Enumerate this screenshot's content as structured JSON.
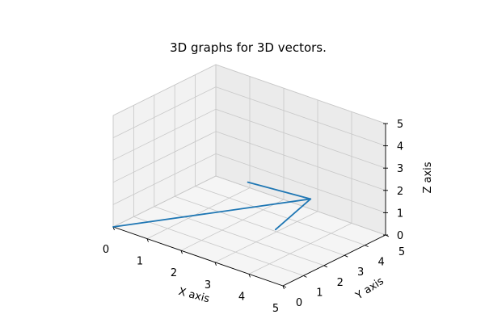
{
  "chart_data": {
    "type": "3d-vector",
    "title": "3D graphs for 3D vectors.",
    "xlabel": "X axis",
    "ylabel": "Y axis",
    "zlabel": "Z axis",
    "xlim": [
      0,
      5
    ],
    "ylim": [
      0,
      5
    ],
    "zlim": [
      0,
      5
    ],
    "xticks": [
      "0",
      "1",
      "2",
      "3",
      "4",
      "5"
    ],
    "yticks": [
      "0",
      "1",
      "2",
      "3",
      "4",
      "5"
    ],
    "zticks": [
      "0",
      "1",
      "2",
      "3",
      "4",
      "5"
    ],
    "grid": true,
    "vectors": [
      {
        "origin": [
          0,
          0,
          0
        ],
        "direction": [
          4,
          3,
          2
        ],
        "color": "#1f77b4"
      }
    ]
  }
}
